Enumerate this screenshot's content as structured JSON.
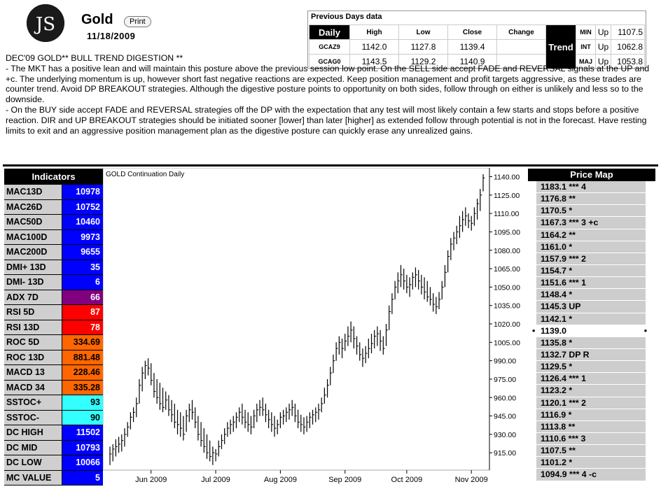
{
  "header": {
    "logo_text": "JS",
    "title": "Gold",
    "print_label": "Print",
    "date": "11/18/2009"
  },
  "previous_days": {
    "title": "Previous Days data",
    "daily_label": "Daily",
    "columns": [
      "High",
      "Low",
      "Close",
      "Change"
    ],
    "rows": [
      {
        "symbol": "GCAZ9",
        "high": "1142.0",
        "low": "1127.8",
        "close": "1139.4",
        "change": ""
      },
      {
        "symbol": "GCAG0",
        "high": "1143.5",
        "low": "1129.2",
        "close": "1140.9",
        "change": ""
      }
    ],
    "trend_label": "Trend",
    "trend": [
      {
        "label": "MIN",
        "dir": "Up",
        "value": "1107.5"
      },
      {
        "label": "INT",
        "dir": "Up",
        "value": "1062.8"
      },
      {
        "label": "MAJ",
        "dir": "Up",
        "value": "1053.8"
      }
    ]
  },
  "digest": {
    "heading": "DEC'09 GOLD** BULL TREND DIGESTION **",
    "para1": "- The MKT has a positive lean and will maintain this posture above the previous session low point. On the SELL side accept FADE and REVERSAL signals at the UP and +c. The underlying momentum is up, however short fast negative reactions are expected. Keep position management and profit targets aggressive, as these trades are counter trend. Avoid DP BREAKOUT strategies. Although the digestive posture points to opportunity on both sides, follow through on either is unlikely and less so to the downside.",
    "para2": "- On the BUY side accept FADE and REVERSAL strategies off the DP with the expectation that any test will most likely contain a few starts and stops before a positive reaction. DIR and UP BREAKOUT strategies should be initiated sooner [lower] than later [higher] as extended follow through potential is not in the forecast. Have resting limits to exit and an aggressive position management plan as the digestive posture can quickly erase any unrealized gains."
  },
  "indicators": {
    "title": "Indicators",
    "items": [
      {
        "name": "MAC13D",
        "value": "10978",
        "color": "#0000ff",
        "text": "#ffffff"
      },
      {
        "name": "MAC26D",
        "value": "10752",
        "color": "#0000ff",
        "text": "#ffffff"
      },
      {
        "name": "MAC50D",
        "value": "10460",
        "color": "#0000ff",
        "text": "#ffffff"
      },
      {
        "name": "MAC100D",
        "value": "9973",
        "color": "#0000ff",
        "text": "#ffffff"
      },
      {
        "name": "MAC200D",
        "value": "9655",
        "color": "#0000ff",
        "text": "#ffffff"
      },
      {
        "name": "DMI+ 13D",
        "value": "35",
        "color": "#0000ff",
        "text": "#ffffff"
      },
      {
        "name": "DMI- 13D",
        "value": "6",
        "color": "#0000ff",
        "text": "#ffffff"
      },
      {
        "name": "ADX 7D",
        "value": "66",
        "color": "#800080",
        "text": "#ffffff"
      },
      {
        "name": "RSI 5D",
        "value": "87",
        "color": "#ff0000",
        "text": "#ffffff"
      },
      {
        "name": "RSI 13D",
        "value": "78",
        "color": "#ff0000",
        "text": "#ffffff"
      },
      {
        "name": "ROC 5D",
        "value": "334.69",
        "color": "#ff6600",
        "text": "#000000"
      },
      {
        "name": "ROC 13D",
        "value": "881.48",
        "color": "#ff6600",
        "text": "#000000"
      },
      {
        "name": "MACD 13",
        "value": "228.46",
        "color": "#ff6600",
        "text": "#000000"
      },
      {
        "name": "MACD 34",
        "value": "335.28",
        "color": "#ff6600",
        "text": "#000000"
      },
      {
        "name": "SSTOC+",
        "value": "93",
        "color": "#33ffff",
        "text": "#000000"
      },
      {
        "name": "SSTOC-",
        "value": "90",
        "color": "#33ffff",
        "text": "#000000"
      },
      {
        "name": "DC HIGH",
        "value": "11502",
        "color": "#0000ff",
        "text": "#ffffff"
      },
      {
        "name": "DC MID",
        "value": "10793",
        "color": "#0000ff",
        "text": "#ffffff"
      },
      {
        "name": "DC LOW",
        "value": "10066",
        "color": "#0000ff",
        "text": "#ffffff"
      },
      {
        "name": "MC VALUE",
        "value": "5",
        "color": "#0000ff",
        "text": "#ffffff"
      }
    ]
  },
  "price_map": {
    "title": "Price Map",
    "current": "1139.0",
    "items": [
      "1183.1 *** 4",
      "1176.8 **",
      "1170.5 *",
      "1167.3 *** 3 +c",
      "1164.2 **",
      "1161.0 *",
      "1157.9 *** 2",
      "1154.7 *",
      "1151.6 *** 1",
      "1148.4 *",
      "1145.3 UP",
      "1142.1 *",
      "1139.0",
      "1135.8 *",
      "1132.7 DP R",
      "1129.5 *",
      "1126.4 *** 1",
      "1123.2 *",
      "1120.1 *** 2",
      "1116.9 *",
      "1113.8 **",
      "1110.6 *** 3",
      "1107.5 **",
      "1101.2 *",
      "1094.9 *** 4 -c"
    ]
  },
  "chart_data": {
    "type": "ohlc",
    "title": "GOLD Continuation Daily",
    "ylim": [
      902,
      1146
    ],
    "yticks": [
      "1140.00",
      "1125.00",
      "1110.00",
      "1095.00",
      "1080.00",
      "1065.00",
      "1050.00",
      "1035.00",
      "1020.00",
      "1005.00",
      "990.00",
      "975.00",
      "960.00",
      "945.00",
      "930.00",
      "915.00"
    ],
    "xlabels": [
      {
        "label": "Jun 2009",
        "index": 14
      },
      {
        "label": "Jul 2009",
        "index": 36
      },
      {
        "label": "Aug 2009",
        "index": 58
      },
      {
        "label": "Sep 2009",
        "index": 80
      },
      {
        "label": "Oct 2009",
        "index": 101
      },
      {
        "label": "Nov 2009",
        "index": 123
      }
    ],
    "bars": [
      [
        920,
        905,
        914
      ],
      [
        922,
        908,
        918
      ],
      [
        926,
        912,
        920
      ],
      [
        928,
        915,
        922
      ],
      [
        930,
        916,
        925
      ],
      [
        935,
        920,
        930
      ],
      [
        940,
        928,
        936
      ],
      [
        948,
        934,
        944
      ],
      [
        952,
        940,
        948
      ],
      [
        960,
        944,
        955
      ],
      [
        975,
        955,
        970
      ],
      [
        985,
        965,
        980
      ],
      [
        990,
        975,
        986
      ],
      [
        992,
        978,
        984
      ],
      [
        988,
        970,
        974
      ],
      [
        980,
        960,
        965
      ],
      [
        975,
        955,
        960
      ],
      [
        972,
        950,
        955
      ],
      [
        968,
        948,
        952
      ],
      [
        965,
        950,
        958
      ],
      [
        962,
        945,
        950
      ],
      [
        958,
        940,
        946
      ],
      [
        955,
        935,
        940
      ],
      [
        950,
        930,
        938
      ],
      [
        948,
        928,
        935
      ],
      [
        945,
        925,
        930
      ],
      [
        950,
        932,
        945
      ],
      [
        955,
        940,
        950
      ],
      [
        958,
        942,
        948
      ],
      [
        952,
        935,
        940
      ],
      [
        945,
        925,
        930
      ],
      [
        940,
        920,
        925
      ],
      [
        935,
        915,
        920
      ],
      [
        930,
        910,
        915
      ],
      [
        925,
        908,
        912
      ],
      [
        920,
        905,
        915
      ],
      [
        918,
        908,
        914
      ],
      [
        925,
        912,
        920
      ],
      [
        930,
        918,
        925
      ],
      [
        935,
        922,
        930
      ],
      [
        940,
        928,
        935
      ],
      [
        942,
        930,
        938
      ],
      [
        945,
        932,
        940
      ],
      [
        948,
        935,
        944
      ],
      [
        952,
        940,
        948
      ],
      [
        955,
        938,
        944
      ],
      [
        950,
        935,
        940
      ],
      [
        948,
        932,
        938
      ],
      [
        945,
        930,
        936
      ],
      [
        950,
        935,
        945
      ],
      [
        955,
        940,
        950
      ],
      [
        958,
        945,
        952
      ],
      [
        960,
        945,
        950
      ],
      [
        955,
        940,
        946
      ],
      [
        950,
        935,
        942
      ],
      [
        948,
        932,
        938
      ],
      [
        945,
        928,
        935
      ],
      [
        942,
        930,
        938
      ],
      [
        948,
        935,
        944
      ],
      [
        950,
        938,
        945
      ],
      [
        952,
        940,
        948
      ],
      [
        955,
        942,
        950
      ],
      [
        958,
        945,
        952
      ],
      [
        955,
        940,
        945
      ],
      [
        950,
        935,
        940
      ],
      [
        946,
        932,
        938
      ],
      [
        944,
        930,
        936
      ],
      [
        945,
        932,
        940
      ],
      [
        948,
        935,
        944
      ],
      [
        950,
        938,
        946
      ],
      [
        952,
        940,
        948
      ],
      [
        955,
        942,
        950
      ],
      [
        960,
        948,
        955
      ],
      [
        968,
        955,
        962
      ],
      [
        975,
        960,
        970
      ],
      [
        985,
        970,
        980
      ],
      [
        995,
        980,
        990
      ],
      [
        1005,
        990,
        1000
      ],
      [
        1010,
        995,
        1005
      ],
      [
        1008,
        992,
        1000
      ],
      [
        1012,
        998,
        1006
      ],
      [
        1018,
        1002,
        1010
      ],
      [
        1022,
        1005,
        1015
      ],
      [
        1018,
        1000,
        1008
      ],
      [
        1010,
        995,
        1002
      ],
      [
        1005,
        990,
        995
      ],
      [
        1000,
        985,
        992
      ],
      [
        1002,
        988,
        996
      ],
      [
        1008,
        992,
        1000
      ],
      [
        1012,
        996,
        1004
      ],
      [
        1015,
        1000,
        1010
      ],
      [
        1018,
        1002,
        1012
      ],
      [
        1015,
        998,
        1006
      ],
      [
        1010,
        995,
        1000
      ],
      [
        1020,
        1002,
        1015
      ],
      [
        1035,
        1015,
        1030
      ],
      [
        1045,
        1028,
        1040
      ],
      [
        1055,
        1040,
        1050
      ],
      [
        1062,
        1045,
        1055
      ],
      [
        1068,
        1050,
        1060
      ],
      [
        1065,
        1048,
        1055
      ],
      [
        1060,
        1045,
        1050
      ],
      [
        1058,
        1042,
        1052
      ],
      [
        1062,
        1048,
        1058
      ],
      [
        1066,
        1050,
        1060
      ],
      [
        1064,
        1048,
        1055
      ],
      [
        1060,
        1044,
        1050
      ],
      [
        1058,
        1040,
        1046
      ],
      [
        1055,
        1038,
        1042
      ],
      [
        1050,
        1035,
        1040
      ],
      [
        1045,
        1030,
        1036
      ],
      [
        1042,
        1028,
        1034
      ],
      [
        1046,
        1032,
        1040
      ],
      [
        1055,
        1040,
        1050
      ],
      [
        1068,
        1050,
        1062
      ],
      [
        1080,
        1062,
        1075
      ],
      [
        1090,
        1072,
        1085
      ],
      [
        1095,
        1080,
        1090
      ],
      [
        1100,
        1085,
        1095
      ],
      [
        1108,
        1090,
        1100
      ],
      [
        1112,
        1095,
        1105
      ],
      [
        1115,
        1100,
        1108
      ],
      [
        1110,
        1098,
        1104
      ],
      [
        1108,
        1096,
        1102
      ],
      [
        1115,
        1100,
        1110
      ],
      [
        1122,
        1105,
        1118
      ],
      [
        1130,
        1112,
        1125
      ],
      [
        1142,
        1128,
        1139
      ]
    ]
  }
}
